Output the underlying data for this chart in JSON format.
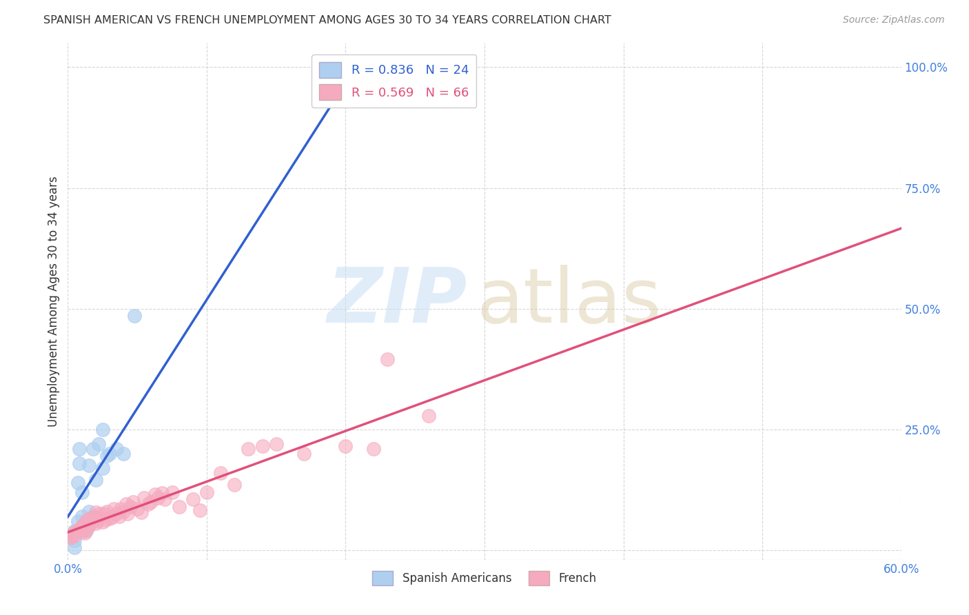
{
  "title": "SPANISH AMERICAN VS FRENCH UNEMPLOYMENT AMONG AGES 30 TO 34 YEARS CORRELATION CHART",
  "source": "Source: ZipAtlas.com",
  "ylabel": "Unemployment Among Ages 30 to 34 years",
  "xlim": [
    0.0,
    0.6
  ],
  "ylim": [
    -0.02,
    1.05
  ],
  "xticks": [
    0.0,
    0.1,
    0.2,
    0.3,
    0.4,
    0.5,
    0.6
  ],
  "xtick_labels": [
    "0.0%",
    "",
    "",
    "",
    "",
    "",
    "60.0%"
  ],
  "yticks": [
    0.0,
    0.25,
    0.5,
    0.75,
    1.0
  ],
  "ytick_labels": [
    "",
    "25.0%",
    "50.0%",
    "75.0%",
    "100.0%"
  ],
  "spanish_R": 0.836,
  "spanish_N": 24,
  "french_R": 0.569,
  "french_N": 66,
  "spanish_color": "#aecff0",
  "french_color": "#f5aabf",
  "spanish_line_color": "#3060d0",
  "french_line_color": "#e0507a",
  "background_color": "#ffffff",
  "spanish_x": [
    0.005,
    0.005,
    0.005,
    0.007,
    0.007,
    0.008,
    0.008,
    0.01,
    0.01,
    0.013,
    0.015,
    0.015,
    0.018,
    0.018,
    0.02,
    0.022,
    0.025,
    0.025,
    0.028,
    0.03,
    0.035,
    0.04,
    0.048,
    0.2
  ],
  "spanish_y": [
    0.005,
    0.02,
    0.04,
    0.06,
    0.14,
    0.18,
    0.21,
    0.07,
    0.12,
    0.04,
    0.08,
    0.175,
    0.07,
    0.21,
    0.145,
    0.22,
    0.17,
    0.25,
    0.195,
    0.2,
    0.21,
    0.2,
    0.485,
    0.93
  ],
  "french_x": [
    0.002,
    0.003,
    0.004,
    0.005,
    0.006,
    0.007,
    0.008,
    0.009,
    0.01,
    0.01,
    0.011,
    0.012,
    0.012,
    0.013,
    0.013,
    0.014,
    0.015,
    0.015,
    0.016,
    0.017,
    0.018,
    0.019,
    0.02,
    0.02,
    0.021,
    0.022,
    0.023,
    0.025,
    0.026,
    0.027,
    0.028,
    0.03,
    0.032,
    0.033,
    0.035,
    0.037,
    0.038,
    0.04,
    0.042,
    0.043,
    0.045,
    0.047,
    0.05,
    0.053,
    0.055,
    0.058,
    0.06,
    0.063,
    0.065,
    0.068,
    0.07,
    0.075,
    0.08,
    0.09,
    0.095,
    0.1,
    0.11,
    0.12,
    0.13,
    0.14,
    0.15,
    0.17,
    0.2,
    0.22,
    0.23,
    0.26
  ],
  "french_y": [
    0.025,
    0.03,
    0.035,
    0.03,
    0.038,
    0.04,
    0.042,
    0.045,
    0.038,
    0.05,
    0.048,
    0.035,
    0.055,
    0.042,
    0.06,
    0.048,
    0.05,
    0.065,
    0.058,
    0.06,
    0.068,
    0.062,
    0.055,
    0.078,
    0.06,
    0.068,
    0.075,
    0.058,
    0.075,
    0.062,
    0.08,
    0.065,
    0.068,
    0.085,
    0.075,
    0.07,
    0.085,
    0.08,
    0.095,
    0.075,
    0.09,
    0.1,
    0.085,
    0.078,
    0.108,
    0.095,
    0.1,
    0.115,
    0.108,
    0.118,
    0.105,
    0.12,
    0.09,
    0.105,
    0.082,
    0.12,
    0.16,
    0.135,
    0.21,
    0.215,
    0.22,
    0.2,
    0.215,
    0.21,
    0.395,
    0.278
  ]
}
